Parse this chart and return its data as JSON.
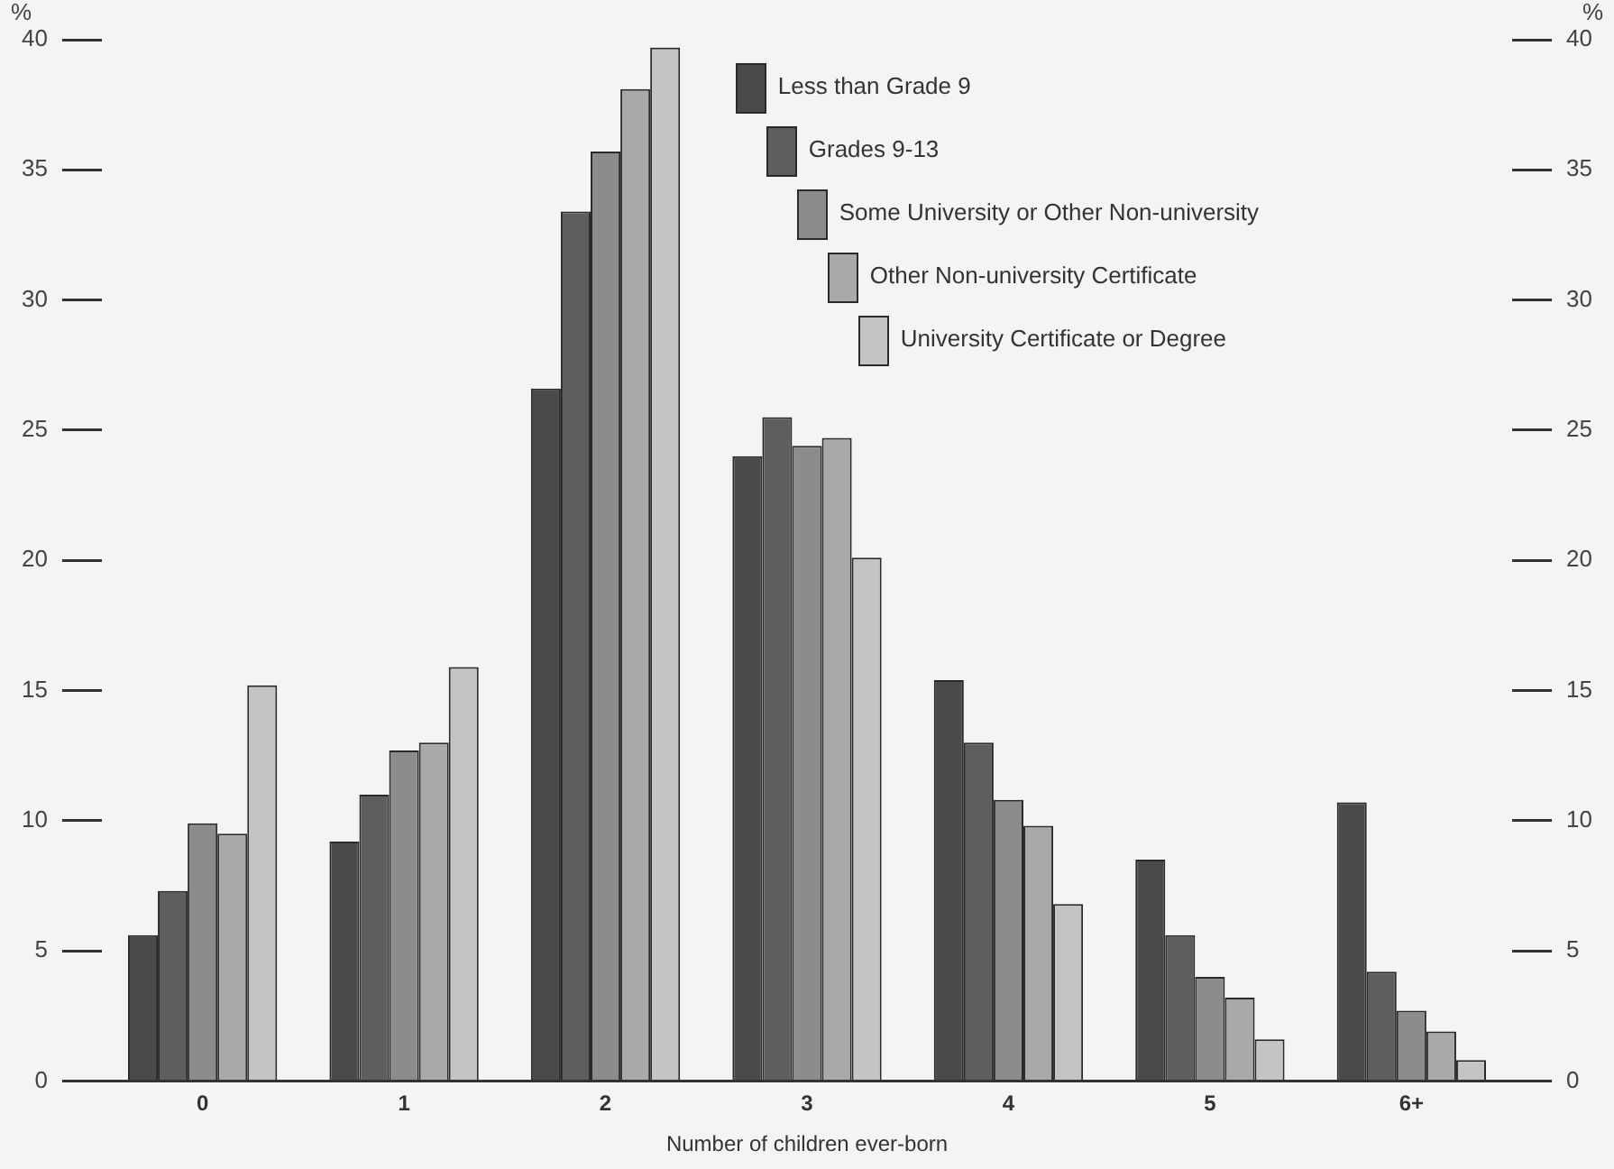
{
  "chart_data": {
    "type": "bar",
    "xlabel": "Number of children ever-born",
    "ylabel": "%",
    "y2label": "%",
    "categories": [
      "0",
      "1",
      "2",
      "3",
      "4",
      "5",
      "6+"
    ],
    "series": [
      {
        "name": "Less than Grade 9",
        "color": "#4a4a4a",
        "values": [
          5.6,
          9.2,
          26.6,
          24.0,
          15.4,
          8.5,
          10.7
        ]
      },
      {
        "name": "Grades 9-13",
        "color": "#5e5e5e",
        "values": [
          7.3,
          11.0,
          33.4,
          25.5,
          13.0,
          5.6,
          4.2
        ]
      },
      {
        "name": "Some University or Other Non-university",
        "color": "#8c8c8c",
        "values": [
          9.9,
          12.7,
          35.7,
          24.4,
          10.8,
          4.0,
          2.7
        ]
      },
      {
        "name": "Other Non-university Certificate",
        "color": "#a9a9a9",
        "values": [
          9.5,
          13.0,
          38.1,
          24.7,
          9.8,
          3.2,
          1.9
        ]
      },
      {
        "name": "University Certificate or Degree",
        "color": "#c4c4c4",
        "values": [
          15.2,
          15.9,
          39.7,
          20.1,
          6.8,
          1.6,
          0.8
        ]
      }
    ],
    "ylim": [
      0,
      40
    ],
    "yticks": [
      0,
      5,
      10,
      15,
      20,
      25,
      30,
      35,
      40
    ],
    "y2lim": [
      0,
      40
    ],
    "y2ticks": [
      0,
      5,
      10,
      15,
      20,
      25,
      30,
      35,
      40
    ],
    "grid": false,
    "legend": "top"
  }
}
